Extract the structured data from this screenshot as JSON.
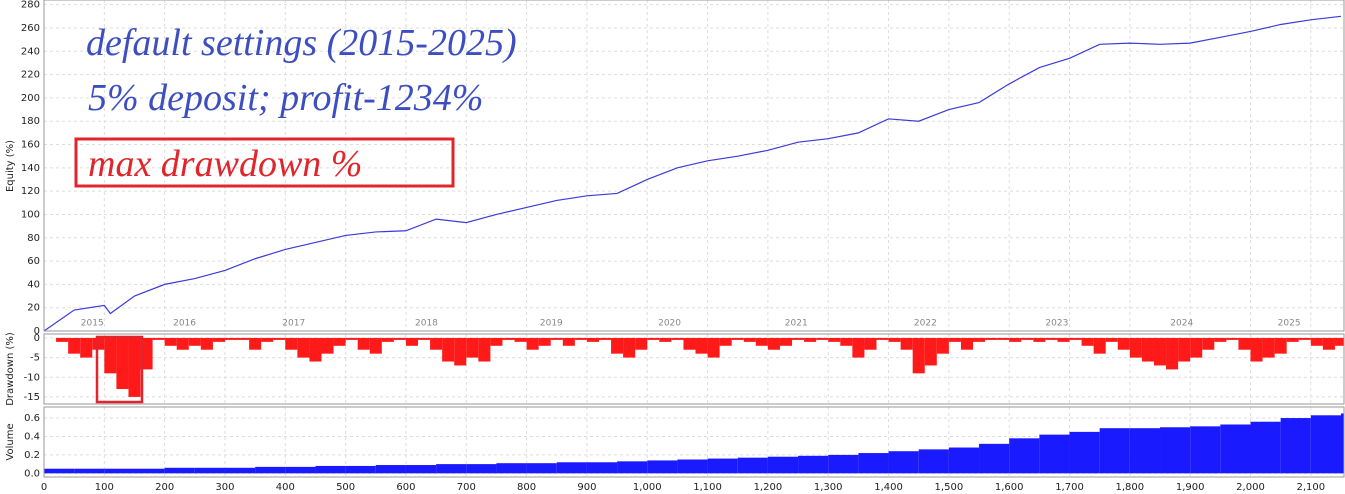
{
  "chart_data": [
    {
      "type": "line",
      "y_label": "Equity (%)",
      "color": "#3b3bdb",
      "annotations": [
        "default settings (2015-2025)",
        "5% deposit; profit-1234%",
        "max drawdown %"
      ],
      "year_labels": {
        "x": [
          80,
          233,
          414,
          634,
          841,
          1037,
          1247,
          1461,
          1679,
          1886,
          2064
        ],
        "labels": [
          "2015",
          "2016",
          "2017",
          "2018",
          "2019",
          "2020",
          "2021",
          "2022",
          "2023",
          "2024",
          "2025"
        ]
      },
      "x": [
        0,
        50,
        100,
        110,
        150,
        200,
        250,
        300,
        350,
        400,
        450,
        500,
        550,
        600,
        650,
        700,
        750,
        800,
        850,
        900,
        950,
        1000,
        1050,
        1100,
        1150,
        1200,
        1250,
        1300,
        1350,
        1400,
        1450,
        1500,
        1550,
        1600,
        1650,
        1700,
        1750,
        1800,
        1850,
        1900,
        1950,
        2000,
        2050,
        2100,
        2150
      ],
      "values": [
        0,
        18,
        22,
        15,
        30,
        40,
        45,
        52,
        62,
        70,
        76,
        82,
        85,
        86,
        96,
        93,
        100,
        106,
        112,
        116,
        118,
        130,
        140,
        146,
        150,
        155,
        162,
        165,
        170,
        182,
        180,
        190,
        196,
        212,
        226,
        234,
        246,
        247,
        246,
        247,
        252,
        257,
        263,
        267,
        270
      ],
      "xlim": [
        0,
        2155
      ],
      "ylim": [
        0,
        284
      ],
      "yticks": [
        0,
        20,
        40,
        60,
        80,
        100,
        120,
        140,
        160,
        180,
        200,
        220,
        240,
        260,
        280
      ],
      "grid": true
    },
    {
      "type": "bar",
      "y_label": "Drawdown (%)",
      "color": "#ff1a1a",
      "x": [
        0,
        20,
        40,
        60,
        80,
        100,
        120,
        140,
        160,
        180,
        200,
        220,
        240,
        260,
        280,
        300,
        320,
        340,
        360,
        380,
        400,
        420,
        440,
        460,
        480,
        500,
        520,
        540,
        560,
        580,
        600,
        620,
        640,
        660,
        680,
        700,
        720,
        740,
        760,
        780,
        800,
        820,
        840,
        860,
        880,
        900,
        920,
        940,
        960,
        980,
        1000,
        1020,
        1040,
        1060,
        1080,
        1100,
        1120,
        1140,
        1160,
        1180,
        1200,
        1220,
        1240,
        1260,
        1280,
        1300,
        1320,
        1340,
        1360,
        1380,
        1400,
        1420,
        1440,
        1460,
        1480,
        1500,
        1520,
        1540,
        1560,
        1580,
        1600,
        1620,
        1640,
        1660,
        1680,
        1700,
        1720,
        1740,
        1760,
        1780,
        1800,
        1820,
        1840,
        1860,
        1880,
        1900,
        1920,
        1940,
        1960,
        1980,
        2000,
        2020,
        2040,
        2060,
        2080,
        2100,
        2120,
        2140
      ],
      "values": [
        0,
        -1,
        -4,
        -5,
        -3,
        -9,
        -13,
        -15,
        -8,
        -0.5,
        -2,
        -3,
        -2,
        -3,
        -1,
        -0.5,
        -0.5,
        -3,
        -1,
        -0.5,
        -3,
        -5,
        -6,
        -4,
        -2,
        -0.5,
        -3,
        -4,
        -1,
        -0.5,
        -2,
        -0.5,
        -3,
        -6,
        -7,
        -5,
        -6,
        -2,
        -0.5,
        -1,
        -3,
        -2,
        -0.5,
        -2,
        -0.5,
        -1,
        -0.5,
        -4,
        -5,
        -3,
        -0.5,
        -1,
        -0.5,
        -3,
        -4,
        -5,
        -2,
        -0.5,
        -1,
        -2,
        -3,
        -2,
        -0.5,
        -1,
        -0.5,
        -1,
        -2,
        -5,
        -3,
        -0.5,
        -1,
        -3,
        -9,
        -7,
        -4,
        -1,
        -3,
        -1,
        -0.5,
        -0.5,
        -1,
        -0.5,
        -1,
        -0.5,
        -1,
        -0.5,
        -2,
        -4,
        -1,
        -3,
        -5,
        -6,
        -7,
        -8,
        -6,
        -5,
        -3,
        -1,
        -0.5,
        -3,
        -6,
        -5,
        -4,
        -1,
        -0.5,
        -2,
        -3,
        -2
      ],
      "xlim": [
        0,
        2155
      ],
      "ylim": [
        -16.8,
        1
      ],
      "yticks": [
        0,
        -5,
        -10,
        -15
      ],
      "grid": true
    },
    {
      "type": "bar",
      "y_label": "Volume",
      "color": "#1a1aff",
      "x": [
        0,
        50,
        100,
        150,
        200,
        250,
        300,
        350,
        400,
        450,
        500,
        550,
        600,
        650,
        700,
        750,
        800,
        850,
        900,
        950,
        1000,
        1050,
        1100,
        1150,
        1200,
        1250,
        1300,
        1350,
        1400,
        1450,
        1500,
        1550,
        1600,
        1650,
        1700,
        1750,
        1800,
        1850,
        1900,
        1950,
        2000,
        2050,
        2100,
        2150
      ],
      "values": [
        0.05,
        0.05,
        0.05,
        0.05,
        0.06,
        0.06,
        0.06,
        0.07,
        0.07,
        0.08,
        0.08,
        0.09,
        0.09,
        0.1,
        0.1,
        0.11,
        0.11,
        0.12,
        0.12,
        0.13,
        0.14,
        0.15,
        0.16,
        0.17,
        0.18,
        0.19,
        0.2,
        0.22,
        0.24,
        0.26,
        0.28,
        0.32,
        0.38,
        0.42,
        0.45,
        0.49,
        0.49,
        0.5,
        0.51,
        0.53,
        0.56,
        0.6,
        0.63,
        0.65
      ],
      "xlim": [
        0,
        2155
      ],
      "ylim": [
        -0.04,
        0.72
      ],
      "yticks": [
        {
          "value": 0,
          "label": "0.0"
        },
        0.2,
        0.4,
        0.6
      ],
      "xticks": [
        0,
        100,
        200,
        300,
        400,
        500,
        600,
        700,
        800,
        900,
        {
          "value": 1000,
          "label": "1,000"
        },
        {
          "value": 1100,
          "label": "1,100"
        },
        {
          "value": 1200,
          "label": "1,200"
        },
        {
          "value": 1300,
          "label": "1,300"
        },
        {
          "value": 1400,
          "label": "1,400"
        },
        {
          "value": 1500,
          "label": "1,500"
        },
        {
          "value": 1600,
          "label": "1,600"
        },
        {
          "value": 1700,
          "label": "1,700"
        },
        {
          "value": 1800,
          "label": "1,800"
        },
        {
          "value": 1900,
          "label": "1,900"
        },
        {
          "value": 2000,
          "label": "2,000"
        },
        {
          "value": 2100,
          "label": "2,100"
        }
      ],
      "grid": true
    }
  ]
}
